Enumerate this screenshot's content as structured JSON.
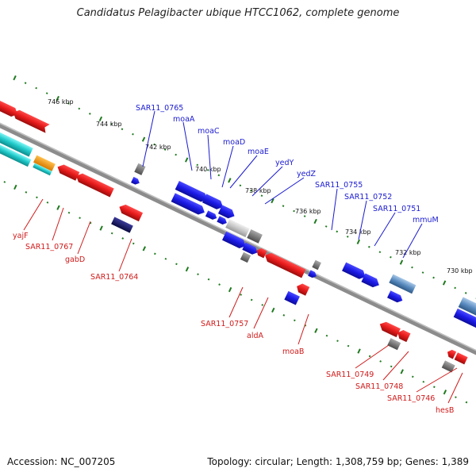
{
  "title": "Candidatus Pelagibacter ubique HTCC1062, complete genome",
  "footer": {
    "accession": "Accession: NC_007205",
    "stats": "Topology: circular; Length: 1,308,759 bp; Genes: 1,389"
  },
  "colors": {
    "forward_gene": "#1a1ae6",
    "reverse_gene": "#e61a1a",
    "other_feature": "#777777",
    "tick_major": "#1f7a1f",
    "backbone": "#8c8c8c",
    "label_top": "#1a1ad0",
    "label_bottom": "#d01a1a"
  },
  "ticks": [
    "746 kbp",
    "744 kbp",
    "742 kbp",
    "740 kbp",
    "738 kbp",
    "736 kbp",
    "734 kbp",
    "732 kbp",
    "730 kbp"
  ],
  "top_labels": [
    "SAR11_0765",
    "moaA",
    "moaC",
    "moaD",
    "moaE",
    "yedY",
    "yedZ",
    "SAR11_0755",
    "SAR11_0752",
    "SAR11_0751",
    "mmuM"
  ],
  "bottom_labels": [
    "yajF",
    "SAR11_0767",
    "gabD",
    "SAR11_0764",
    "SAR11_0757",
    "aldA",
    "moaB",
    "SAR11_0749",
    "SAR11_0748",
    "SAR11_0746",
    "hesB"
  ]
}
